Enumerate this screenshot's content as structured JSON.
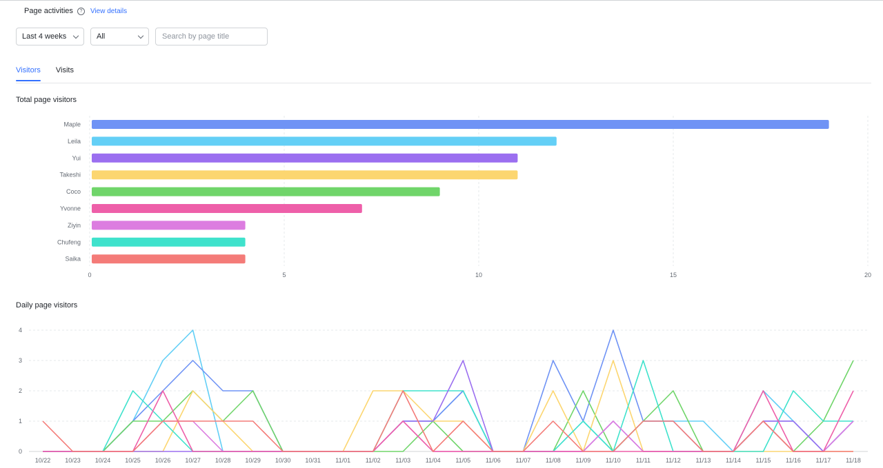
{
  "header": {
    "title": "Page activities",
    "help_glyph": "?",
    "view_details": "View details"
  },
  "filters": {
    "period": "Last 4 weeks",
    "scope": "All",
    "search_placeholder": "Search by page title"
  },
  "tabs": [
    {
      "label": "Visitors",
      "active": true
    },
    {
      "label": "Visits",
      "active": false
    }
  ],
  "colors": {
    "accent": "#3370ff"
  },
  "chart_data": [
    {
      "type": "bar",
      "orientation": "horizontal",
      "title": "Total page visitors",
      "categories": [
        "Maple",
        "Leila",
        "Yui",
        "Takeshi",
        "Coco",
        "Yvonne",
        "Ziyin",
        "Chufeng",
        "Saika"
      ],
      "values": [
        19,
        12,
        11,
        11,
        9,
        7,
        4,
        4,
        4
      ],
      "colors": [
        "#6f93f5",
        "#63cff6",
        "#9b6ff0",
        "#fcd670",
        "#70d56a",
        "#ee5fa9",
        "#dc7de0",
        "#3fe2cc",
        "#f47b78"
      ],
      "xlim": [
        0,
        20
      ],
      "xticks": [
        "0",
        "5",
        "10",
        "15",
        "20"
      ],
      "grid": "vertical-dashed"
    },
    {
      "type": "line",
      "title": "Daily page visitors",
      "x": [
        "10/22",
        "10/23",
        "10/24",
        "10/25",
        "10/26",
        "10/27",
        "10/28",
        "10/29",
        "10/30",
        "10/31",
        "11/01",
        "11/02",
        "11/03",
        "11/04",
        "11/05",
        "11/06",
        "11/07",
        "11/08",
        "11/09",
        "11/10",
        "11/11",
        "11/12",
        "11/13",
        "11/14",
        "11/15",
        "11/16",
        "11/17",
        "11/18"
      ],
      "ylim": [
        0,
        4
      ],
      "yticks": [
        "0",
        "1",
        "2",
        "3",
        "4"
      ],
      "grid": "horizontal-dashed",
      "series": [
        {
          "color": "#63cff6",
          "values": [
            0,
            0,
            0,
            1,
            3,
            4,
            0,
            0,
            0,
            0,
            0,
            0,
            1,
            1,
            2,
            0,
            0,
            0,
            1,
            0,
            1,
            1,
            1,
            0,
            2,
            1,
            0,
            1
          ]
        },
        {
          "color": "#6f93f5",
          "values": [
            0,
            0,
            0,
            1,
            2,
            3,
            2,
            2,
            0,
            0,
            0,
            0,
            1,
            1,
            2,
            0,
            0,
            3,
            1,
            4,
            1,
            1,
            0,
            0,
            1,
            1,
            0,
            1
          ]
        },
        {
          "color": "#70d56a",
          "values": [
            0,
            0,
            0,
            1,
            1,
            2,
            1,
            2,
            0,
            0,
            0,
            0,
            0,
            1,
            0,
            0,
            0,
            0,
            2,
            0,
            1,
            2,
            0,
            0,
            1,
            0,
            1,
            3
          ]
        },
        {
          "color": "#fcd670",
          "values": [
            0,
            0,
            0,
            0,
            0,
            2,
            1,
            0,
            0,
            0,
            0,
            2,
            2,
            1,
            1,
            0,
            0,
            2,
            0,
            3,
            0,
            0,
            0,
            0,
            0,
            0,
            0,
            0
          ]
        },
        {
          "color": "#3fe2cc",
          "values": [
            0,
            0,
            0,
            2,
            1,
            0,
            0,
            0,
            0,
            0,
            0,
            0,
            2,
            2,
            2,
            0,
            0,
            0,
            1,
            0,
            3,
            0,
            0,
            0,
            0,
            2,
            1,
            1
          ]
        },
        {
          "color": "#9b6ff0",
          "values": [
            0,
            0,
            0,
            0,
            0,
            0,
            0,
            0,
            0,
            0,
            0,
            0,
            1,
            1,
            3,
            0,
            0,
            0,
            0,
            1,
            0,
            0,
            0,
            0,
            1,
            1,
            0,
            1
          ]
        },
        {
          "color": "#dc7de0",
          "values": [
            0,
            0,
            0,
            0,
            1,
            1,
            0,
            0,
            0,
            0,
            0,
            0,
            1,
            0,
            0,
            0,
            0,
            0,
            0,
            1,
            0,
            0,
            0,
            0,
            1,
            0,
            0,
            1
          ]
        },
        {
          "color": "#ee5fa9",
          "values": [
            0,
            0,
            0,
            0,
            2,
            0,
            0,
            0,
            0,
            0,
            0,
            0,
            1,
            0,
            0,
            0,
            0,
            0,
            0,
            0,
            0,
            0,
            0,
            0,
            2,
            0,
            0,
            2
          ]
        },
        {
          "color": "#f47b78",
          "values": [
            1,
            0,
            0,
            0,
            1,
            1,
            1,
            1,
            0,
            0,
            0,
            0,
            2,
            0,
            1,
            0,
            0,
            1,
            0,
            0,
            1,
            1,
            0,
            0,
            1,
            0,
            0,
            0
          ]
        }
      ]
    }
  ]
}
